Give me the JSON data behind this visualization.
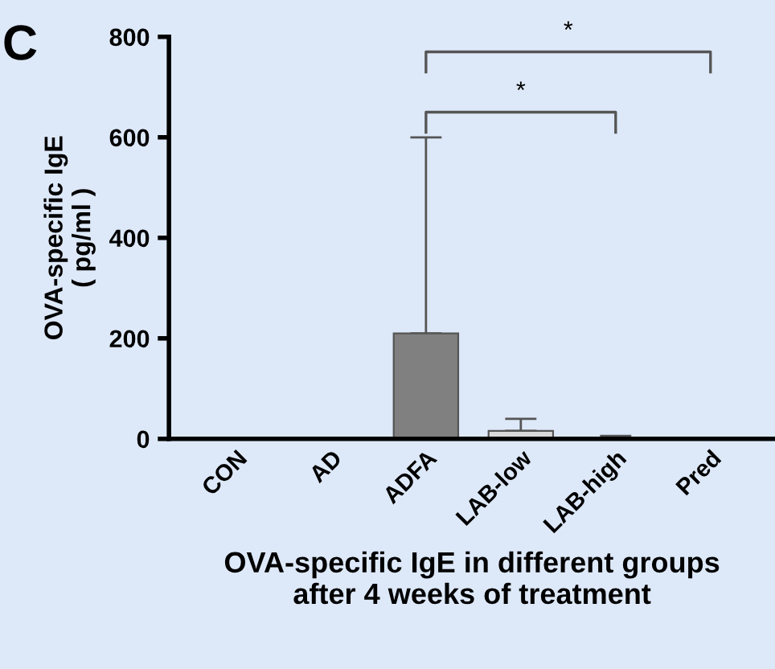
{
  "chart_data": {
    "type": "bar",
    "xlabel": "OVA-specific IgE in different groups\nafter 4 weeks of treatment",
    "ylabel": "OVA-specific IgE\n( pg/ml )",
    "categories": [
      "CON",
      "AD",
      "ADFA",
      "LAB-low",
      "LAB-high",
      "Pred"
    ],
    "values": [
      0,
      0,
      210,
      16,
      2,
      0
    ],
    "errors": [
      null,
      null,
      390,
      24,
      4,
      null
    ],
    "colors": [
      "#808080",
      "#808080",
      "#808080",
      "#d9d9d9",
      "#d9d9d9",
      "#d9d9d9"
    ],
    "ylim": [
      0,
      800
    ],
    "yticks": [
      0,
      200,
      400,
      600,
      800
    ],
    "grid": false,
    "annotations": [
      "C",
      "*",
      "*"
    ]
  }
}
